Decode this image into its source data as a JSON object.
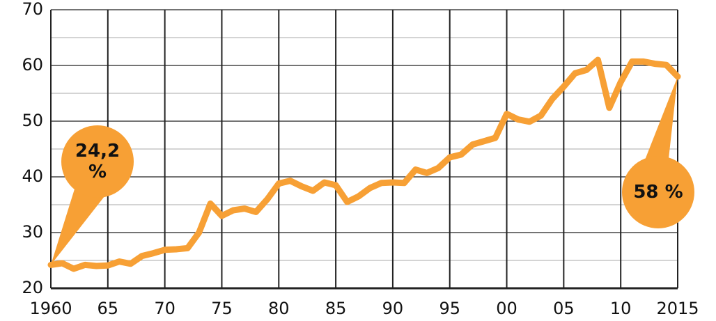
{
  "chart_data": {
    "type": "line",
    "x": [
      1960,
      1961,
      1962,
      1963,
      1964,
      1965,
      1966,
      1967,
      1968,
      1969,
      1970,
      1971,
      1972,
      1973,
      1974,
      1975,
      1976,
      1977,
      1978,
      1979,
      1980,
      1981,
      1982,
      1983,
      1984,
      1985,
      1986,
      1987,
      1988,
      1989,
      1990,
      1991,
      1992,
      1993,
      1994,
      1995,
      1996,
      1997,
      1998,
      1999,
      2000,
      2001,
      2002,
      2003,
      2004,
      2005,
      2006,
      2007,
      2008,
      2009,
      2010,
      2011,
      2012,
      2013,
      2014,
      2015
    ],
    "values": [
      24.2,
      24.5,
      23.5,
      24.2,
      24.0,
      24.1,
      24.8,
      24.4,
      25.8,
      26.3,
      26.9,
      27.0,
      27.2,
      30.0,
      35.2,
      33.0,
      34.0,
      34.3,
      33.7,
      36.0,
      38.8,
      39.3,
      38.3,
      37.5,
      39.0,
      38.5,
      35.5,
      36.5,
      38.0,
      38.9,
      39.0,
      38.9,
      41.3,
      40.7,
      41.6,
      43.5,
      44.0,
      45.8,
      46.4,
      47.0,
      51.3,
      50.3,
      49.9,
      51.0,
      54.0,
      56.2,
      58.6,
      59.2,
      61.0,
      52.4,
      57.0,
      60.7,
      60.7,
      60.3,
      60.1,
      58.0
    ],
    "color": "#f7a035",
    "xlim": [
      1960,
      2015
    ],
    "xticks": [
      1960,
      {
        "value": 1965,
        "label": "65"
      },
      {
        "value": 1970,
        "label": "70"
      },
      {
        "value": 1975,
        "label": "75"
      },
      {
        "value": 1980,
        "label": "80"
      },
      {
        "value": 1985,
        "label": "85"
      },
      {
        "value": 1990,
        "label": "90"
      },
      {
        "value": 1995,
        "label": "95"
      },
      {
        "value": 2000,
        "label": "00"
      },
      {
        "value": 2005,
        "label": "05"
      },
      {
        "value": 2010,
        "label": "10"
      },
      2015
    ],
    "ylim": [
      20,
      70
    ],
    "yticks": [
      20,
      30,
      40,
      50,
      60,
      70
    ],
    "minor_yticks": [
      25,
      35,
      45,
      55,
      65
    ],
    "grid": true,
    "annotations": [
      [
        "24,2",
        "%"
      ],
      [
        "58 %"
      ]
    ]
  }
}
